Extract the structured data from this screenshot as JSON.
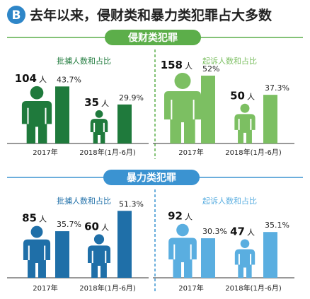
{
  "header": {
    "badge_letter": "B",
    "title": "去年以来，侵财类和暴力类犯罪占大多数"
  },
  "colors": {
    "badge": "#2e86c8",
    "dark_green": "#1f7a3c",
    "light_green": "#7cbf62",
    "dark_blue": "#1f6fa8",
    "light_blue": "#5aaee0",
    "banner_green": "#5cae4a",
    "banner_blue": "#3b93d1",
    "panel_green": "#eaf4e1",
    "panel_blue": "#e4f0f8"
  },
  "sections": [
    {
      "id": "property",
      "banner_label": "侵财类犯罪",
      "panels": [
        {
          "id": "property-arrest",
          "caption": "批捕人数和占比",
          "theme": "dark_green",
          "groups": [
            {
              "period": "2017年",
              "count_label": "104",
              "unit": "人",
              "count": 104,
              "percent_label": "43.7%",
              "percent": 43.7
            },
            {
              "period": "2018年(1月-6月)",
              "count_label": "35",
              "unit": "人",
              "count": 35,
              "percent_label": "29.9%",
              "percent": 29.9
            }
          ]
        },
        {
          "id": "property-prosecute",
          "caption": "起诉人数和占比",
          "theme": "light_green",
          "groups": [
            {
              "period": "2017年",
              "count_label": "158",
              "unit": "人",
              "count": 158,
              "percent_label": "52%",
              "percent": 52
            },
            {
              "period": "2018年(1月-6月)",
              "count_label": "50",
              "unit": "人",
              "count": 50,
              "percent_label": "37.3%",
              "percent": 37.3
            }
          ]
        }
      ]
    },
    {
      "id": "violent",
      "banner_label": "暴力类犯罪",
      "panels": [
        {
          "id": "violent-arrest",
          "caption": "批捕人数和占比",
          "theme": "dark_blue",
          "groups": [
            {
              "period": "2017年",
              "count_label": "85",
              "unit": "人",
              "count": 85,
              "percent_label": "35.7%",
              "percent": 35.7
            },
            {
              "period": "2018年(1月-6月)",
              "count_label": "60",
              "unit": "人",
              "count": 60,
              "percent_label": "51.3%",
              "percent": 51.3
            }
          ]
        },
        {
          "id": "violent-prosecute",
          "caption": "起诉人数和占比",
          "theme": "light_blue",
          "groups": [
            {
              "period": "2017年",
              "count_label": "92",
              "unit": "人",
              "count": 92,
              "percent_label": "30.3%",
              "percent": 30.3
            },
            {
              "period": "2018年(1月-6月)",
              "count_label": "47",
              "unit": "人",
              "count": 47,
              "percent_label": "35.1%",
              "percent": 35.1
            }
          ]
        }
      ]
    }
  ],
  "chart_data": [
    {
      "type": "bar",
      "title": "侵财类犯罪 批捕人数和占比",
      "categories": [
        "2017年",
        "2018年(1月-6月)"
      ],
      "series": [
        {
          "name": "批捕人数",
          "values": [
            104,
            35
          ]
        },
        {
          "name": "占比",
          "values": [
            43.7,
            29.9
          ]
        }
      ]
    },
    {
      "type": "bar",
      "title": "侵财类犯罪 起诉人数和占比",
      "categories": [
        "2017年",
        "2018年(1月-6月)"
      ],
      "series": [
        {
          "name": "起诉人数",
          "values": [
            158,
            50
          ]
        },
        {
          "name": "占比",
          "values": [
            52,
            37.3
          ]
        }
      ]
    },
    {
      "type": "bar",
      "title": "暴力类犯罪 批捕人数和占比",
      "categories": [
        "2017年",
        "2018年(1月-6月)"
      ],
      "series": [
        {
          "name": "批捕人数",
          "values": [
            85,
            60
          ]
        },
        {
          "name": "占比",
          "values": [
            35.7,
            51.3
          ]
        }
      ]
    },
    {
      "type": "bar",
      "title": "暴力类犯罪 起诉人数和占比",
      "categories": [
        "2017年",
        "2018年(1月-6月)"
      ],
      "series": [
        {
          "name": "起诉人数",
          "values": [
            92,
            47
          ]
        },
        {
          "name": "占比",
          "values": [
            30.3,
            35.1
          ]
        }
      ]
    }
  ]
}
